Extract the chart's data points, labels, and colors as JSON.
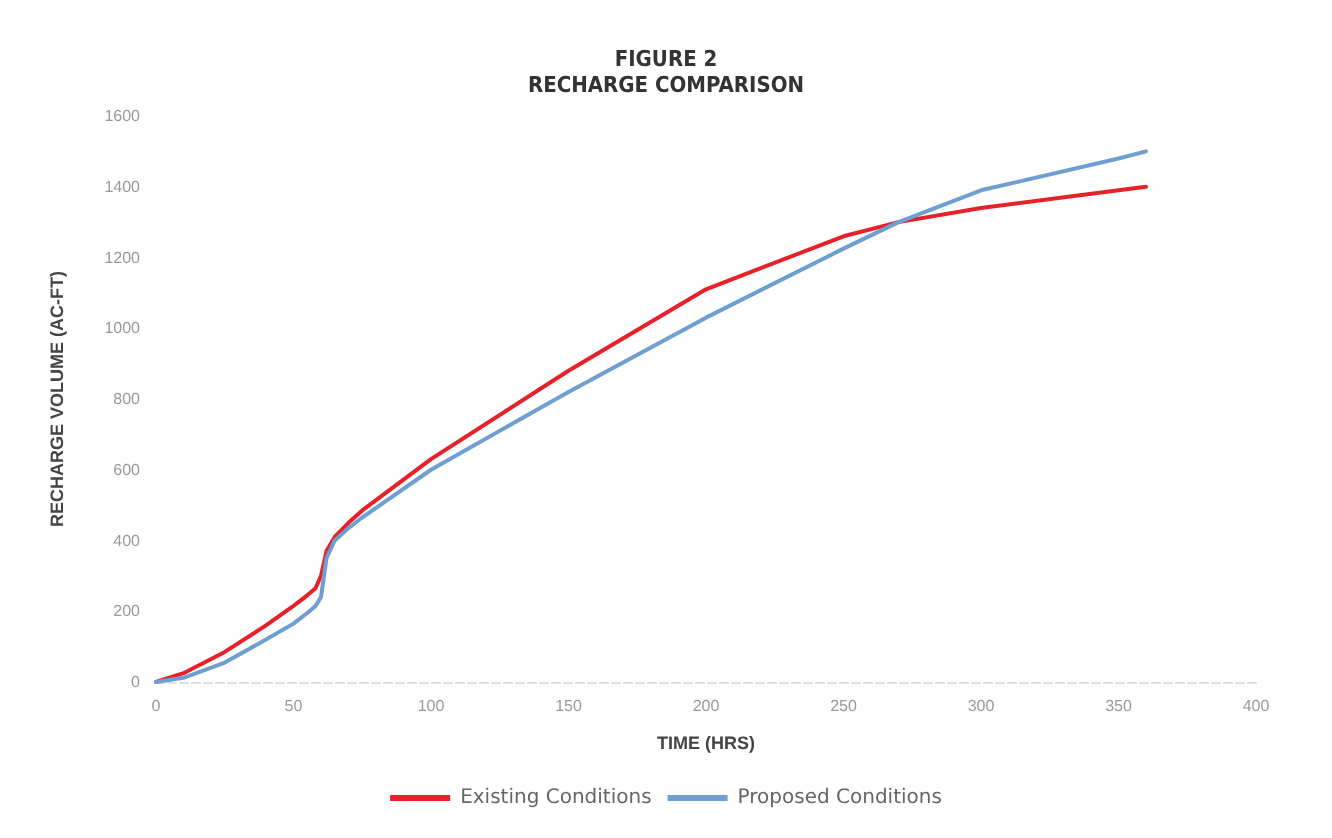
{
  "chart_data": {
    "type": "line",
    "title": "FIGURE 2\nRECHARGE COMPARISON",
    "xlabel": "TIME (HRS)",
    "ylabel": "RECHARGE VOLUME (AC-FT)",
    "x": [
      0,
      10,
      25,
      40,
      50,
      55,
      58,
      60,
      62,
      65,
      70,
      75,
      100,
      150,
      200,
      250,
      270,
      300,
      350,
      360
    ],
    "series": [
      {
        "name": "Existing Conditions",
        "color": "#e8202a",
        "values": [
          0,
          25,
          85,
          160,
          215,
          245,
          265,
          300,
          370,
          410,
          450,
          485,
          630,
          880,
          1110,
          1260,
          1300,
          1340,
          1390,
          1400
        ]
      },
      {
        "name": "Proposed Conditions",
        "color": "#6f9fd0",
        "values": [
          0,
          12,
          55,
          120,
          165,
          195,
          215,
          240,
          350,
          400,
          435,
          465,
          600,
          820,
          1030,
          1225,
          1300,
          1390,
          1480,
          1500
        ]
      }
    ],
    "xlim": [
      0,
      400
    ],
    "xticks": [
      0,
      50,
      100,
      150,
      200,
      250,
      300,
      350,
      400
    ],
    "ylim": [
      0,
      1600
    ],
    "yticks": [
      0,
      200,
      400,
      600,
      800,
      1000,
      1200,
      1400,
      1600
    ],
    "grid": false,
    "legend": "bottom",
    "marker": "none",
    "line_style": "solid"
  }
}
